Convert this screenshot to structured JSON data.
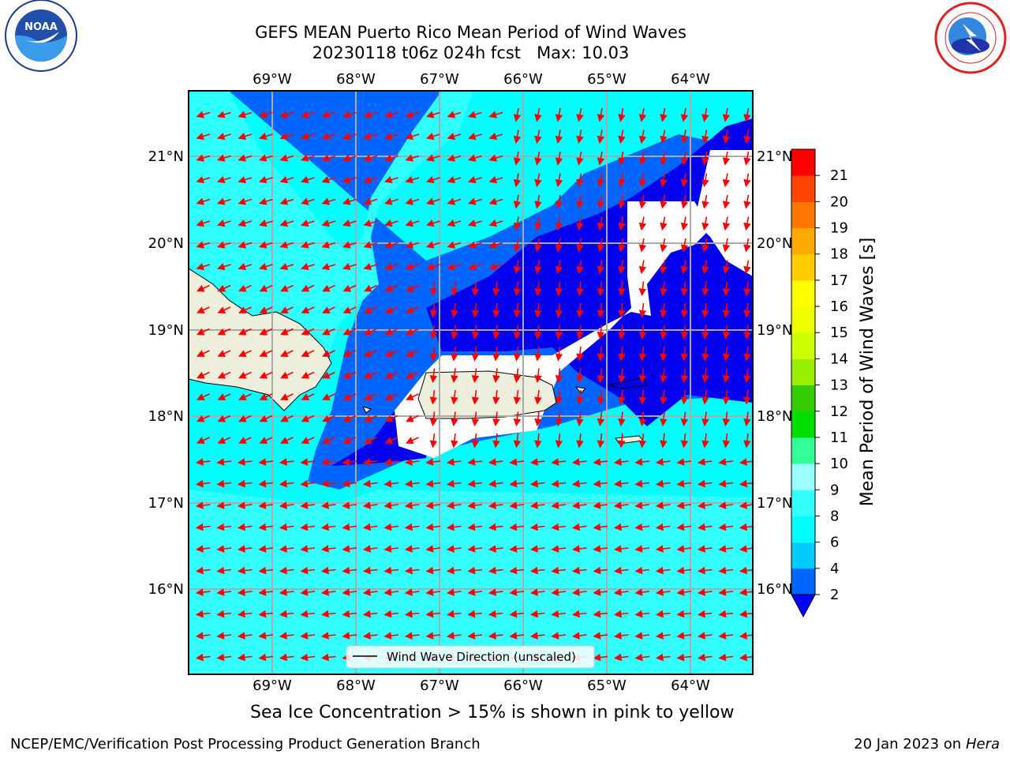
{
  "title": {
    "line1": "GEFS MEAN Puerto Rico Mean Period of Wind Waves",
    "line2": "20230118 t06z 024h fcst   Max: 10.03"
  },
  "logos": {
    "left": {
      "name": "noaa-logo",
      "text": "NOAA"
    },
    "right": {
      "name": "nws-logo"
    }
  },
  "map": {
    "lon_labels": [
      "69°W",
      "68°W",
      "67°W",
      "66°W",
      "65°W",
      "64°W"
    ],
    "lat_labels": [
      "21°N",
      "20°N",
      "19°N",
      "18°N",
      "17°N",
      "16°N"
    ],
    "legend_label": "Wind Wave Direction (unscaled)",
    "arrow_color": "#ff0000",
    "land_color": "#eeeedd"
  },
  "colorbar": {
    "label": "Mean Period of Wind Waves [s]",
    "ticks": [
      "2",
      "4",
      "6",
      "8",
      "9",
      "10",
      "11",
      "12",
      "13",
      "14",
      "15",
      "16",
      "17",
      "18",
      "19",
      "20",
      "21"
    ],
    "colors": [
      "#0066ff",
      "#00ccff",
      "#00ffff",
      "#33ffff",
      "#99ffff",
      "#33ff99",
      "#00dd00",
      "#33cc00",
      "#99ee00",
      "#ccff00",
      "#eeff00",
      "#ffff00",
      "#ffcc00",
      "#ffaa00",
      "#ff7700",
      "#ff4400",
      "#ff0000"
    ],
    "under_color": "#0000ff"
  },
  "note": "Sea Ice Concentration > 15% is shown in pink to yellow",
  "footer": {
    "left": "NCEP/EMC/Verification Post Processing Product Generation Branch",
    "right_date": "20 Jan 2023 on ",
    "right_host": "Hera"
  }
}
